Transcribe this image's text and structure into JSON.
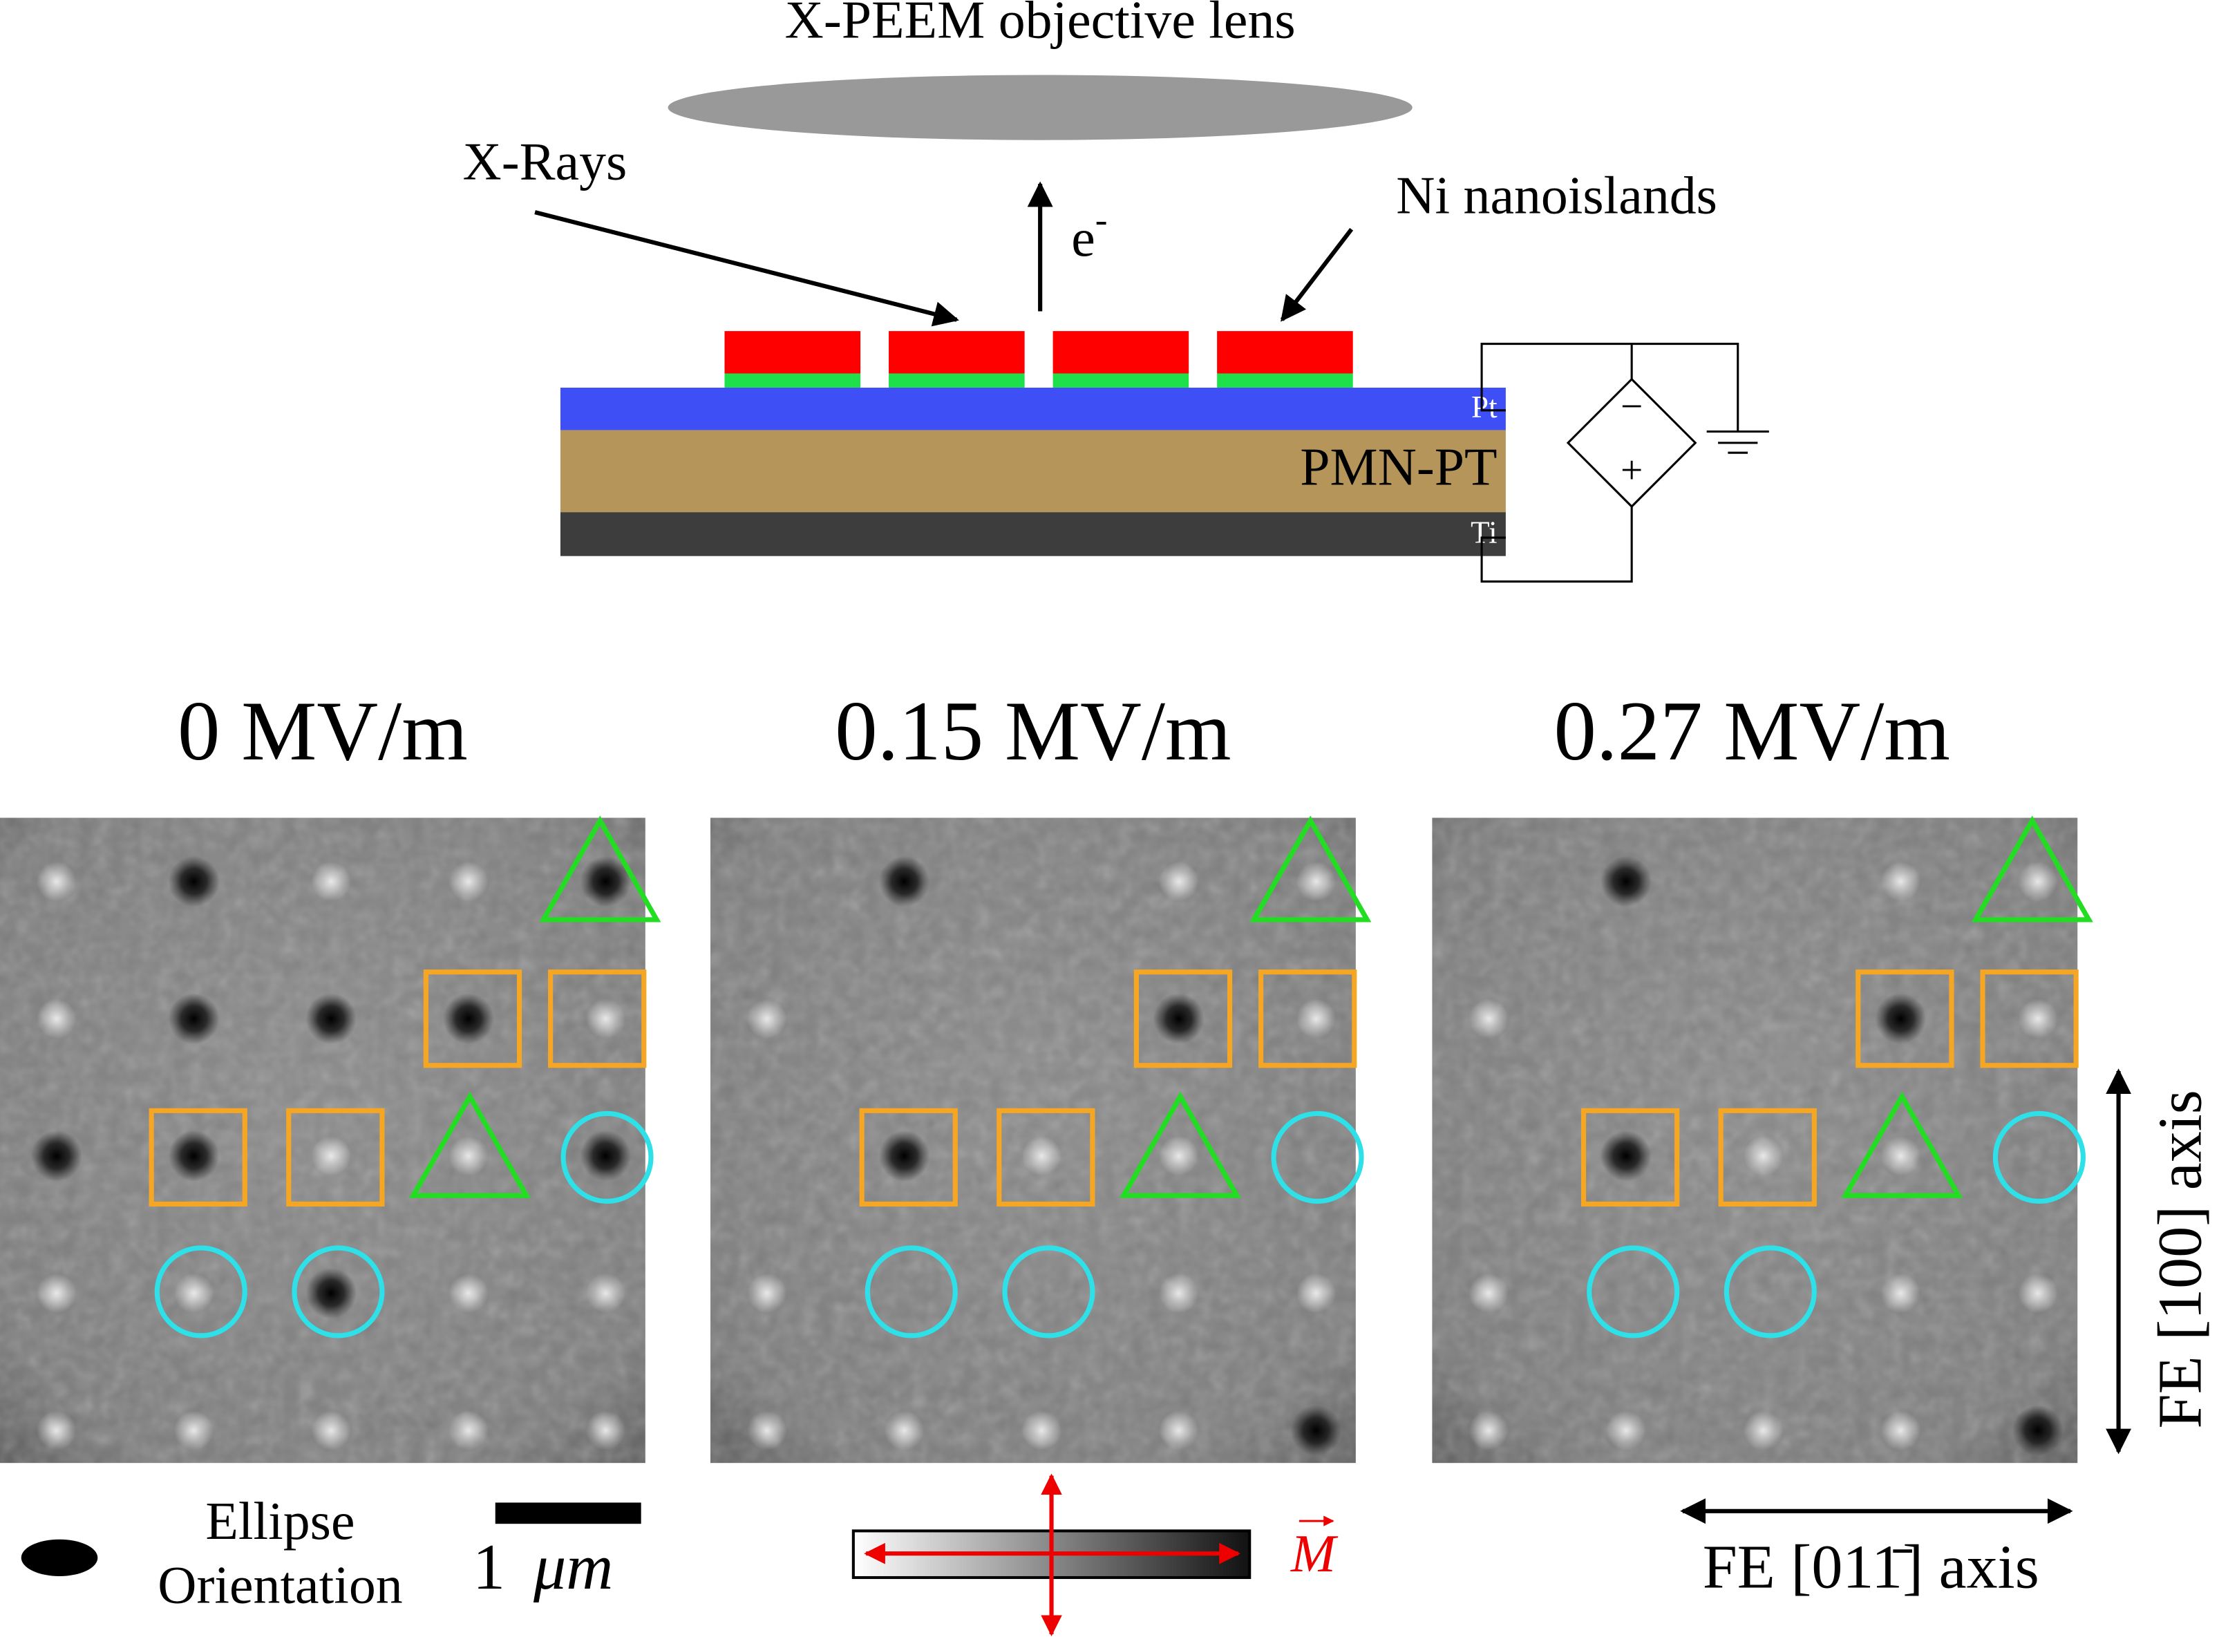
{
  "diagram": {
    "lens_label": "X-PEEM objective lens",
    "xrays_label": "X-Rays",
    "electron_label": {
      "base": "e",
      "sup": "-"
    },
    "islands_label": "Ni nanoislands",
    "layers": [
      "Pt",
      "PMN-PT",
      "Ti"
    ],
    "source_signs": {
      "minus": "−",
      "plus": "+"
    }
  },
  "panels": {
    "titles": [
      "0 MV/m",
      "0.15 MV/m",
      "0.27 MV/m"
    ]
  },
  "legend": {
    "ellipse_line1": "Ellipse",
    "ellipse_line2": "Orientation",
    "scale_number": "1",
    "scale_unit": "μm",
    "magnetization": "M"
  },
  "axes": {
    "vertical": "FE [100] axis",
    "horizontal": "FE [011̄] axis"
  }
}
